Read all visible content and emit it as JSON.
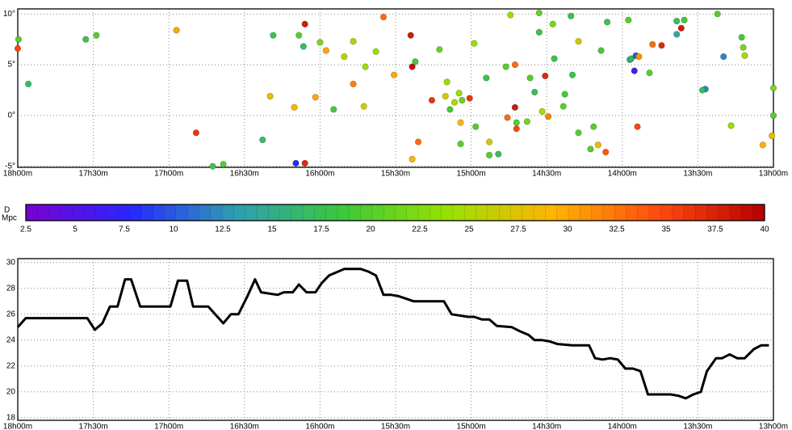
{
  "chart_data": [
    {
      "type": "scatter",
      "x": [
        17.995,
        18.0,
        17.93,
        17.55,
        17.48,
        16.95,
        16.82,
        16.71,
        16.64,
        16.38,
        16.33,
        16.31,
        16.17,
        16.16,
        16.14,
        16.1,
        16.11,
        16.1,
        16.03,
        16.0,
        15.96,
        15.91,
        15.84,
        15.78,
        15.78,
        15.71,
        15.7,
        15.63,
        15.58,
        15.51,
        15.4,
        15.39,
        15.37,
        15.35,
        15.39,
        15.26,
        15.21,
        15.17,
        15.16,
        15.14,
        15.11,
        15.08,
        15.07,
        15.07,
        15.06,
        15.01,
        14.98,
        14.97,
        14.9,
        14.88,
        14.88,
        14.82,
        14.76,
        14.77,
        14.74,
        14.71,
        14.71,
        14.7,
        14.7,
        14.63,
        14.61,
        14.58,
        14.55,
        14.55,
        14.53,
        14.51,
        14.49,
        14.46,
        14.45,
        14.39,
        14.38,
        14.34,
        14.33,
        14.29,
        14.29,
        14.19,
        14.16,
        14.21,
        14.14,
        14.11,
        14.1,
        13.96,
        13.95,
        13.92,
        13.94,
        13.91,
        13.89,
        13.9,
        13.82,
        13.8,
        13.74,
        13.64,
        13.64,
        13.61,
        13.59,
        13.45,
        13.47,
        13.37,
        13.28,
        13.21,
        13.2,
        13.19,
        13.33,
        13.0,
        13.0,
        13.07,
        13.01
      ],
      "y": [
        7.5,
        6.6,
        3.1,
        7.5,
        7.9,
        8.4,
        -1.7,
        -5.0,
        -4.8,
        -2.4,
        1.9,
        7.9,
        0.8,
        -4.7,
        7.9,
        9.0,
        6.8,
        -4.7,
        1.8,
        7.2,
        6.4,
        0.6,
        5.8,
        3.1,
        7.3,
        0.9,
        4.8,
        6.3,
        9.7,
        4.0,
        7.9,
        4.8,
        5.3,
        -2.6,
        -4.3,
        1.5,
        6.5,
        1.9,
        3.3,
        0.6,
        1.3,
        2.2,
        -0.7,
        -2.8,
        1.5,
        1.7,
        7.1,
        -1.1,
        3.7,
        -2.6,
        -3.9,
        -3.8,
        -0.2,
        4.8,
        9.9,
        5.0,
        0.8,
        -1.3,
        -0.7,
        -0.6,
        3.7,
        2.3,
        10.1,
        8.2,
        0.4,
        3.9,
        -0.1,
        9.0,
        5.6,
        0.9,
        2.1,
        9.8,
        4.0,
        -1.7,
        7.3,
        -1.1,
        -2.9,
        -3.3,
        6.4,
        -3.6,
        9.2,
        9.4,
        5.5,
        4.4,
        5.6,
        5.9,
        5.8,
        -1.1,
        4.2,
        7.0,
        6.9,
        8.0,
        9.3,
        8.6,
        9.4,
        2.6,
        2.5,
        10.0,
        -1.0,
        7.7,
        6.7,
        5.9,
        5.8,
        2.7,
        0.0,
        -2.9,
        -2.0
      ],
      "values": [
        20,
        35,
        17,
        18,
        20,
        30,
        36,
        18,
        20,
        17,
        28,
        18,
        29,
        8,
        20,
        38,
        17,
        37,
        30,
        22,
        30,
        19,
        25,
        32,
        25,
        27,
        24,
        24,
        33,
        30,
        38,
        39,
        19,
        33,
        29,
        36,
        21,
        27,
        24,
        19,
        25,
        24,
        29,
        20,
        21,
        36,
        24,
        20,
        18,
        27,
        20,
        17,
        33,
        20,
        24,
        33,
        38,
        35,
        20,
        22,
        20,
        17,
        21,
        18,
        25,
        37,
        32,
        22,
        18,
        20,
        19,
        18,
        18,
        20,
        27,
        20,
        28,
        20,
        19,
        34,
        18,
        20,
        16,
        6,
        16,
        10,
        31,
        35,
        20,
        33,
        37,
        14,
        17,
        38,
        19,
        12,
        17,
        20,
        24,
        19,
        22,
        25,
        12,
        22,
        20,
        29,
        28
      ],
      "xlim": [
        18,
        13
      ],
      "ylim": [
        -5.1,
        10.5
      ],
      "xticks": [
        {
          "value": 18,
          "label": "18h00m"
        },
        {
          "value": 17.5,
          "label": "17h30m"
        },
        {
          "value": 17,
          "label": "17h00m"
        },
        {
          "value": 16.5,
          "label": "16h30m"
        },
        {
          "value": 16,
          "label": "16h00m"
        },
        {
          "value": 15.5,
          "label": "15h30m"
        },
        {
          "value": 15,
          "label": "15h00m"
        },
        {
          "value": 14.5,
          "label": "14h30m"
        },
        {
          "value": 14,
          "label": "14h00m"
        },
        {
          "value": 13.5,
          "label": "13h30m"
        },
        {
          "value": 13,
          "label": "13h00m"
        }
      ],
      "yticks": [
        {
          "value": -5,
          "label": "-5°"
        },
        {
          "value": 0,
          "label": "0°"
        },
        {
          "value": 5,
          "label": "5°"
        },
        {
          "value": 10,
          "label": "10°"
        }
      ],
      "grid": true,
      "colormap": [
        "#7a00d2",
        "#2828ff",
        "#2f9fb0",
        "#3cc83c",
        "#99e000",
        "#ffb400",
        "#ff4a10",
        "#b40000"
      ],
      "colorbar": {
        "label": [
          "D",
          "Mpc"
        ],
        "lim": [
          2.5,
          40
        ],
        "ticks": [
          2.5,
          5,
          7.5,
          10,
          12.5,
          15,
          17.5,
          20,
          22.5,
          25,
          27.5,
          30,
          32.5,
          35,
          37.5,
          40
        ]
      }
    },
    {
      "type": "line",
      "x": [
        18.0,
        17.947,
        17.54,
        17.49,
        17.44,
        17.39,
        17.34,
        17.29,
        17.25,
        17.19,
        17.09,
        16.99,
        16.94,
        16.88,
        16.84,
        16.74,
        16.64,
        16.59,
        16.54,
        16.48,
        16.43,
        16.39,
        16.28,
        16.24,
        16.18,
        16.14,
        16.09,
        16.03,
        15.99,
        15.94,
        15.88,
        15.84,
        15.73,
        15.68,
        15.63,
        15.58,
        15.53,
        15.48,
        15.43,
        15.38,
        15.18,
        15.13,
        15.02,
        14.98,
        14.93,
        14.88,
        14.83,
        14.73,
        14.68,
        14.62,
        14.58,
        14.53,
        14.48,
        14.43,
        14.33,
        14.22,
        14.18,
        14.13,
        14.08,
        14.03,
        13.98,
        13.93,
        13.88,
        13.83,
        13.68,
        13.63,
        13.58,
        13.53,
        13.48,
        13.44,
        13.38,
        13.34,
        13.29,
        13.24,
        13.19,
        13.13,
        13.08,
        13.03
      ],
      "series": [
        {
          "color": "#000000",
          "values": [
            25.0,
            25.7,
            25.7,
            24.8,
            25.3,
            26.6,
            26.6,
            28.7,
            28.7,
            26.6,
            26.6,
            26.6,
            28.6,
            28.6,
            26.6,
            26.6,
            25.3,
            26.0,
            26.0,
            27.4,
            28.7,
            27.7,
            27.5,
            27.7,
            27.7,
            28.3,
            27.7,
            27.7,
            28.4,
            29.0,
            29.3,
            29.5,
            29.5,
            29.3,
            29.0,
            27.5,
            27.5,
            27.4,
            27.2,
            27.0,
            27.0,
            26.0,
            25.8,
            25.8,
            25.6,
            25.6,
            25.1,
            25.0,
            24.7,
            24.4,
            24.0,
            24.0,
            23.9,
            23.7,
            23.6,
            23.6,
            22.6,
            22.5,
            22.6,
            22.5,
            21.8,
            21.8,
            21.6,
            19.8,
            19.8,
            19.7,
            19.5,
            19.8,
            20.0,
            21.6,
            22.6,
            22.6,
            22.9,
            22.6,
            22.6,
            23.3,
            23.6,
            23.6
          ]
        }
      ],
      "xlim": [
        18,
        13
      ],
      "ylim": [
        17.8,
        30.3
      ],
      "xticks": [
        {
          "value": 18,
          "label": "18h00m"
        },
        {
          "value": 17.5,
          "label": "17h30m"
        },
        {
          "value": 17,
          "label": "17h00m"
        },
        {
          "value": 16.5,
          "label": "16h30m"
        },
        {
          "value": 16,
          "label": "16h00m"
        },
        {
          "value": 15.5,
          "label": "15h30m"
        },
        {
          "value": 15,
          "label": "15h00m"
        },
        {
          "value": 14.5,
          "label": "14h30m"
        },
        {
          "value": 14,
          "label": "14h00m"
        },
        {
          "value": 13.5,
          "label": "13h30m"
        },
        {
          "value": 13,
          "label": "13h00m"
        }
      ],
      "yticks": [
        18,
        20,
        22,
        24,
        26,
        28,
        30
      ],
      "grid": true
    }
  ]
}
